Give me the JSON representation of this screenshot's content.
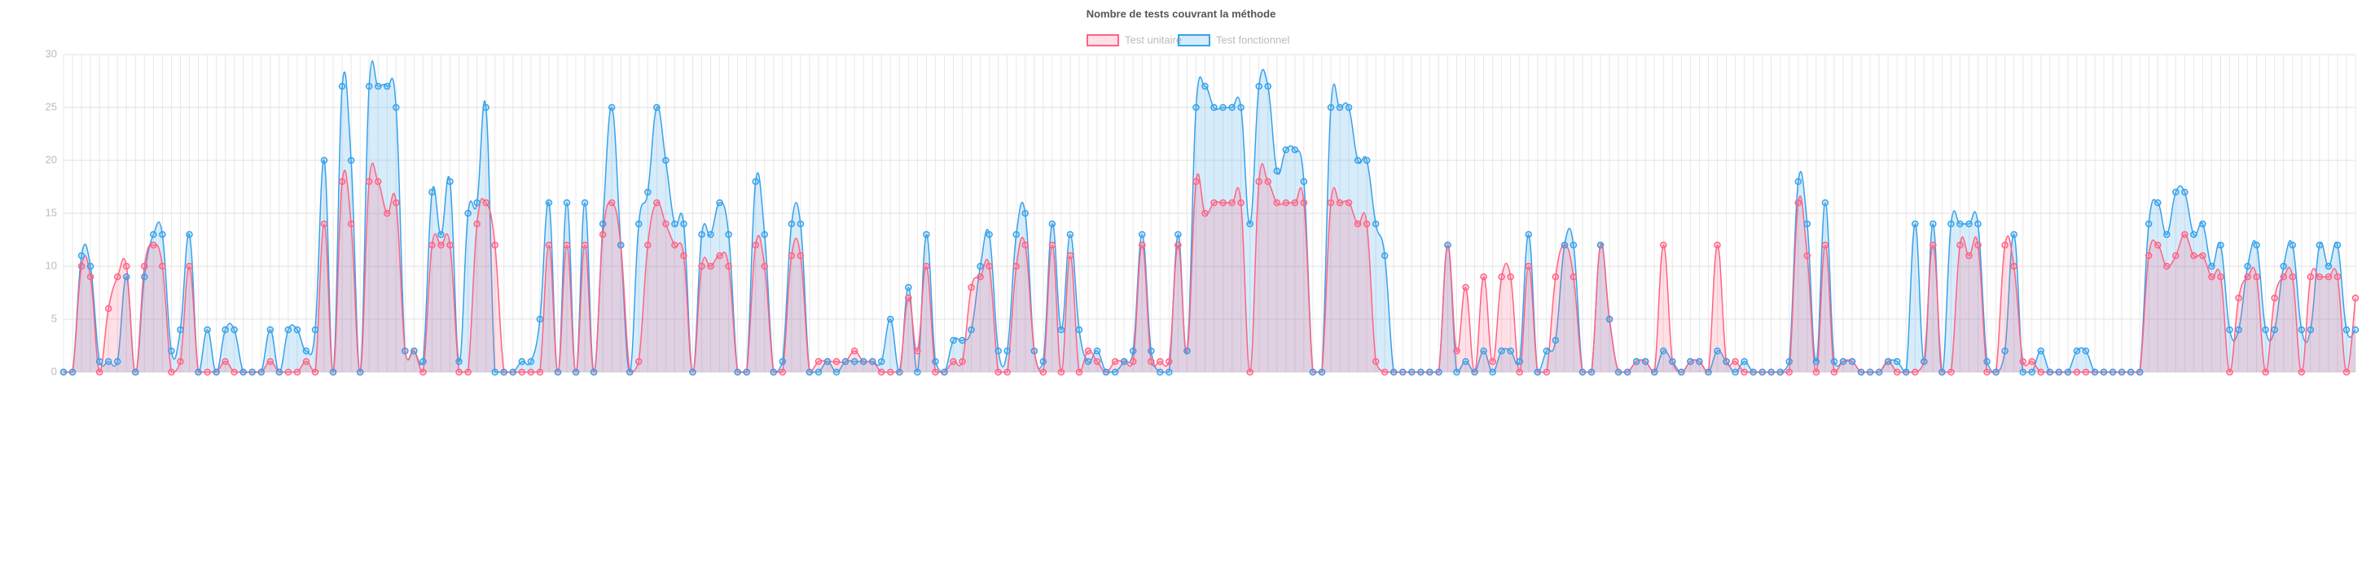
{
  "chart_data": {
    "type": "line",
    "title": "Nombre de tests couvrant la méthode",
    "categories": [
      null,
      null,
      null,
      null,
      null,
      null,
      null,
      null,
      null,
      null,
      null,
      null,
      null,
      null,
      null,
      null,
      null,
      null,
      null,
      null,
      null,
      null,
      null,
      null,
      null,
      null,
      null,
      null,
      null,
      null,
      null,
      null,
      null,
      null,
      null,
      null,
      null,
      null,
      null,
      null,
      null,
      null,
      null,
      null,
      null,
      null,
      null,
      null,
      null,
      null,
      null,
      null,
      null,
      null,
      null,
      null,
      null,
      null,
      null,
      null,
      null,
      null,
      null,
      null,
      null,
      null,
      null,
      null,
      null,
      null,
      null,
      null,
      null,
      null,
      null,
      null,
      null,
      null,
      null,
      null,
      null,
      null,
      null,
      null,
      null,
      null,
      null,
      null,
      null,
      null,
      null,
      null,
      null,
      null,
      null,
      null,
      null,
      null,
      null,
      null,
      null,
      null,
      null,
      null,
      null,
      null,
      null,
      null,
      null,
      null,
      null,
      null,
      null,
      null,
      null,
      null,
      null,
      null,
      null,
      null,
      null,
      null,
      null,
      null,
      null,
      null,
      null,
      null,
      null,
      null,
      null,
      null,
      null,
      null,
      null,
      null,
      null,
      null,
      null,
      null,
      null,
      null,
      null,
      null,
      null,
      null,
      null,
      null,
      null,
      null,
      null,
      null,
      null,
      null,
      null,
      null,
      null,
      null,
      null,
      null,
      null,
      null,
      null,
      null,
      null,
      null,
      null,
      null,
      null,
      null,
      null,
      null,
      null,
      null,
      null,
      null,
      null,
      null,
      null,
      null,
      null,
      null,
      null,
      null,
      null,
      null,
      null,
      null,
      null,
      null,
      null,
      null,
      null,
      null,
      null,
      null,
      null,
      null,
      null,
      null,
      null,
      null,
      null,
      null,
      null,
      null,
      null,
      null,
      null,
      null,
      null,
      null,
      null,
      null,
      null,
      null,
      null,
      null,
      null,
      null,
      null,
      null,
      null,
      null,
      null,
      null,
      null,
      null,
      null,
      null,
      null,
      null,
      null,
      null,
      null,
      null,
      null,
      null,
      null,
      null,
      null,
      null,
      null,
      null,
      null,
      null,
      null,
      null,
      null,
      null,
      null,
      null,
      null,
      null,
      null,
      null
    ],
    "series": [
      {
        "name": "Test unitaire",
        "color": "#ff6384",
        "fill": "rgba(255,99,132,0.2)",
        "values": [
          0,
          0,
          10,
          9,
          0,
          6,
          9,
          10,
          0,
          10,
          12,
          10,
          0,
          1,
          10,
          0,
          0,
          0,
          1,
          0,
          0,
          0,
          0,
          1,
          0,
          0,
          0,
          1,
          0,
          14,
          0,
          18,
          14,
          0,
          18,
          18,
          15,
          16,
          2,
          2,
          0,
          12,
          12,
          12,
          0,
          0,
          14,
          16,
          12,
          0,
          0,
          0,
          0,
          0,
          12,
          0,
          12,
          0,
          12,
          0,
          13,
          16,
          12,
          0,
          1,
          12,
          16,
          14,
          12,
          11,
          0,
          10,
          10,
          11,
          10,
          0,
          0,
          12,
          10,
          0,
          0,
          11,
          11,
          0,
          1,
          1,
          1,
          1,
          2,
          1,
          1,
          0,
          0,
          0,
          7,
          2,
          10,
          0,
          0,
          1,
          1,
          8,
          9,
          10,
          0,
          0,
          10,
          12,
          2,
          0,
          12,
          0,
          11,
          0,
          2,
          1,
          0,
          1,
          1,
          1,
          12,
          1,
          1,
          1,
          12,
          2,
          18,
          15,
          16,
          16,
          16,
          16,
          0,
          18,
          18,
          16,
          16,
          16,
          16,
          0,
          0,
          16,
          16,
          16,
          14,
          14,
          1,
          0,
          0,
          0,
          0,
          0,
          0,
          0,
          12,
          2,
          8,
          0,
          9,
          1,
          9,
          9,
          0,
          10,
          0,
          0,
          9,
          12,
          9,
          0,
          0,
          12,
          5,
          0,
          0,
          1,
          1,
          0,
          12,
          1,
          0,
          1,
          1,
          0,
          12,
          1,
          1,
          0,
          0,
          0,
          0,
          0,
          0,
          16,
          11,
          0,
          12,
          0,
          1,
          1,
          0,
          0,
          0,
          1,
          0,
          0,
          0,
          1,
          12,
          0,
          0,
          12,
          11,
          12,
          0,
          0,
          12,
          10,
          1,
          1,
          0,
          0,
          0,
          0,
          0,
          0,
          0,
          0,
          0,
          0,
          0,
          0,
          11,
          12,
          10,
          11,
          13,
          11,
          11,
          9,
          9,
          0,
          7,
          9,
          9,
          0,
          7,
          9,
          9,
          0,
          9,
          9,
          9,
          9,
          0,
          7
        ]
      },
      {
        "name": "Test fonctionnel",
        "color": "#36a2eb",
        "fill": "rgba(54,162,235,0.2)",
        "values": [
          0,
          0,
          11,
          10,
          1,
          1,
          1,
          9,
          0,
          9,
          13,
          13,
          2,
          4,
          13,
          0,
          4,
          0,
          4,
          4,
          0,
          0,
          0,
          4,
          0,
          4,
          4,
          2,
          4,
          20,
          0,
          27,
          20,
          0,
          27,
          27,
          27,
          25,
          2,
          2,
          1,
          17,
          13,
          18,
          1,
          15,
          16,
          25,
          0,
          0,
          0,
          1,
          1,
          5,
          16,
          0,
          16,
          0,
          16,
          0,
          14,
          25,
          12,
          0,
          14,
          17,
          25,
          20,
          14,
          14,
          0,
          13,
          13,
          16,
          13,
          0,
          0,
          18,
          13,
          0,
          1,
          14,
          14,
          0,
          0,
          1,
          0,
          1,
          1,
          1,
          1,
          1,
          5,
          0,
          8,
          0,
          13,
          1,
          0,
          3,
          3,
          4,
          10,
          13,
          2,
          2,
          13,
          15,
          2,
          1,
          14,
          4,
          13,
          4,
          1,
          2,
          0,
          0,
          1,
          2,
          13,
          2,
          0,
          0,
          13,
          2,
          25,
          27,
          25,
          25,
          25,
          25,
          14,
          27,
          27,
          19,
          21,
          21,
          18,
          0,
          0,
          25,
          25,
          25,
          20,
          20,
          14,
          11,
          0,
          0,
          0,
          0,
          0,
          0,
          12,
          0,
          1,
          0,
          2,
          0,
          2,
          2,
          1,
          13,
          0,
          2,
          3,
          12,
          12,
          0,
          0,
          12,
          5,
          0,
          0,
          1,
          1,
          0,
          2,
          1,
          0,
          1,
          1,
          0,
          2,
          1,
          0,
          1,
          0,
          0,
          0,
          0,
          1,
          18,
          14,
          1,
          16,
          1,
          1,
          1,
          0,
          0,
          0,
          1,
          1,
          0,
          14,
          1,
          14,
          0,
          14,
          14,
          14,
          14,
          1,
          0,
          2,
          13,
          0,
          0,
          2,
          0,
          0,
          0,
          2,
          2,
          0,
          0,
          0,
          0,
          0,
          0,
          14,
          16,
          13,
          17,
          17,
          13,
          14,
          10,
          12,
          4,
          4,
          10,
          12,
          4,
          4,
          10,
          12,
          4,
          4,
          12,
          10,
          12,
          4,
          4
        ]
      }
    ],
    "ylim": [
      0,
      30
    ],
    "yticks": [
      0,
      5,
      10,
      15,
      20,
      25,
      30
    ],
    "grid": true,
    "legend": "top"
  }
}
